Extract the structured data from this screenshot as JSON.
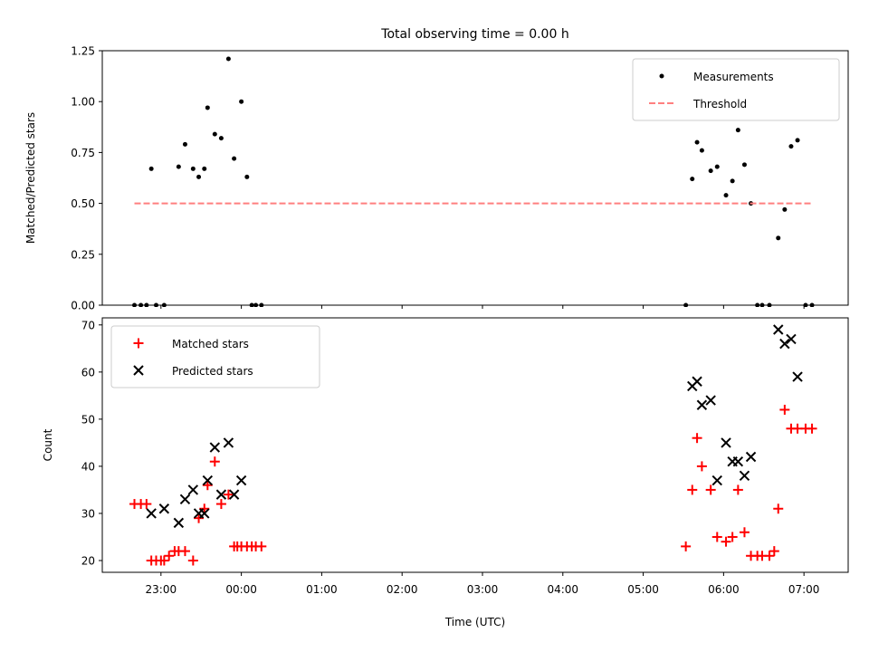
{
  "chart_data": [
    {
      "type": "scatter",
      "title": "Total observing time = 0.00 h",
      "xlabel": "",
      "ylabel": "Matched/Predicted stars",
      "ylim": [
        0,
        1.25
      ],
      "yticks": [
        0,
        0.25,
        0.5,
        0.75,
        1.0,
        1.25
      ],
      "ytick_labels": [
        "0.00",
        "0.25",
        "0.50",
        "0.75",
        "1.00",
        "1.25"
      ],
      "xlim": [
        22.27,
        31.55
      ],
      "legend_position": "top-right",
      "series": [
        {
          "name": "Measurements",
          "kind": "points",
          "color": "#000000",
          "x": [
            22.67,
            22.75,
            22.82,
            22.88,
            22.94,
            23.04,
            23.22,
            23.3,
            23.4,
            23.47,
            23.54,
            23.58,
            23.67,
            23.75,
            23.84,
            23.91,
            24.0,
            24.07,
            24.13,
            24.18,
            24.25,
            29.53,
            29.61,
            29.67,
            29.73,
            29.84,
            29.92,
            30.03,
            30.11,
            30.18,
            30.26,
            30.34,
            30.42,
            30.48,
            30.57,
            30.68,
            30.76,
            30.84,
            30.92,
            31.02,
            31.1
          ],
          "y": [
            0,
            0,
            0,
            0.67,
            0,
            0,
            0.68,
            0.79,
            0.67,
            0.63,
            0.67,
            0.97,
            0.84,
            0.82,
            1.21,
            0.72,
            1.0,
            0.63,
            0,
            0,
            0,
            0,
            0.62,
            0.8,
            0.76,
            0.66,
            0.68,
            0.54,
            0.61,
            0.86,
            0.69,
            0.5,
            0,
            0,
            0,
            0.33,
            0.47,
            0.78,
            0.81,
            0,
            0
          ]
        },
        {
          "name": "Threshold",
          "kind": "dashed-line",
          "color": "#ff7f7f",
          "x": [
            22.67,
            31.1
          ],
          "y": [
            0.5,
            0.5
          ]
        }
      ]
    },
    {
      "type": "scatter",
      "title": "",
      "xlabel": "Time (UTC)",
      "ylabel": "Count",
      "ylim": [
        17.5,
        71.5
      ],
      "yticks": [
        20,
        30,
        40,
        50,
        60,
        70
      ],
      "ytick_labels": [
        "20",
        "30",
        "40",
        "50",
        "60",
        "70"
      ],
      "xlim": [
        22.27,
        31.55
      ],
      "xticks": [
        23,
        24,
        25,
        26,
        27,
        28,
        29,
        30,
        31
      ],
      "xtick_labels": [
        "23:00",
        "00:00",
        "01:00",
        "02:00",
        "03:00",
        "04:00",
        "05:00",
        "06:00",
        "07:00"
      ],
      "legend_position": "top-left",
      "series": [
        {
          "name": "Matched stars",
          "marker": "plus",
          "color": "#ff0000",
          "x": [
            22.67,
            22.75,
            22.82,
            22.88,
            22.94,
            23.0,
            23.04,
            23.1,
            23.17,
            23.22,
            23.3,
            23.4,
            23.47,
            23.54,
            23.58,
            23.67,
            23.75,
            23.84,
            23.91,
            23.95,
            24.0,
            24.07,
            24.13,
            24.18,
            24.25,
            29.53,
            29.61,
            29.67,
            29.73,
            29.84,
            29.92,
            30.03,
            30.11,
            30.18,
            30.26,
            30.34,
            30.42,
            30.48,
            30.57,
            30.63,
            30.68,
            30.76,
            30.84,
            30.92,
            31.02,
            31.1
          ],
          "y": [
            32,
            32,
            32,
            20,
            20,
            20,
            20,
            21,
            22,
            22,
            22,
            20,
            29,
            31,
            36,
            41,
            32,
            34,
            23,
            23,
            23,
            23,
            23,
            23,
            23,
            23,
            35,
            46,
            40,
            35,
            25,
            24,
            25,
            35,
            26,
            21,
            21,
            21,
            21,
            22,
            31,
            52,
            48,
            48,
            48,
            48
          ]
        },
        {
          "name": "Predicted stars",
          "marker": "x",
          "color": "#000000",
          "x": [
            22.88,
            23.04,
            23.22,
            23.3,
            23.4,
            23.47,
            23.54,
            23.58,
            23.67,
            23.75,
            23.84,
            23.91,
            24.0,
            29.61,
            29.67,
            29.73,
            29.84,
            29.92,
            30.03,
            30.11,
            30.18,
            30.26,
            30.34,
            30.68,
            30.76,
            30.84,
            30.92
          ],
          "y": [
            30,
            31,
            28,
            33,
            35,
            30,
            30,
            37,
            44,
            34,
            45,
            34,
            37,
            57,
            58,
            53,
            54,
            37,
            45,
            41,
            41,
            38,
            42,
            69,
            66,
            67,
            59
          ]
        }
      ]
    }
  ]
}
